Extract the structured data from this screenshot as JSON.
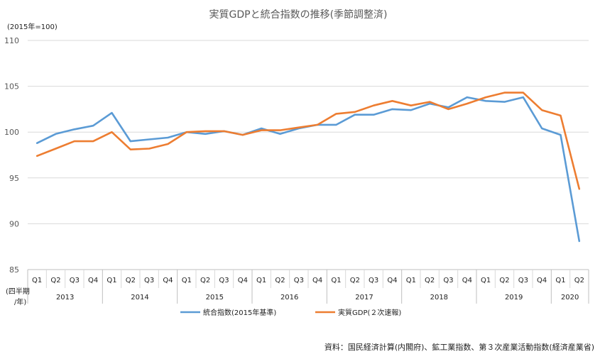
{
  "chart_data": {
    "type": "line",
    "title": "実質GDPと統合指数の推移(季節調整済)",
    "unit_label": "(2015年=100)",
    "xlabel_line1": "(四半期",
    "xlabel_line2": "/年)",
    "ylim": [
      85,
      110
    ],
    "yticks": [
      "85",
      "90",
      "95",
      "100",
      "105",
      "110"
    ],
    "grid": true,
    "legend_position": "bottom",
    "quarters": [
      "Q1",
      "Q2",
      "Q3",
      "Q4",
      "Q1",
      "Q2",
      "Q3",
      "Q4",
      "Q1",
      "Q2",
      "Q3",
      "Q4",
      "Q1",
      "Q2",
      "Q3",
      "Q4",
      "Q1",
      "Q2",
      "Q3",
      "Q4",
      "Q1",
      "Q2",
      "Q3",
      "Q4",
      "Q1",
      "Q2",
      "Q3",
      "Q4",
      "Q1",
      "Q2"
    ],
    "years": [
      "2013",
      "2014",
      "2015",
      "2016",
      "2017",
      "2018",
      "2019",
      "2020"
    ],
    "series": [
      {
        "name": "統合指数(2015年基準)",
        "color": "#5b9bd5",
        "values": [
          98.8,
          99.8,
          100.3,
          100.7,
          102.1,
          99.0,
          99.2,
          99.4,
          100.0,
          99.8,
          100.1,
          99.7,
          100.4,
          99.8,
          100.4,
          100.8,
          100.8,
          101.9,
          101.9,
          102.5,
          102.4,
          103.1,
          102.7,
          103.8,
          103.4,
          103.3,
          103.8,
          100.4,
          99.7,
          88.1
        ]
      },
      {
        "name": "実質GDP(２次速報)",
        "color": "#ed7d31",
        "values": [
          97.4,
          98.2,
          99.0,
          99.0,
          100.0,
          98.1,
          98.2,
          98.7,
          100.0,
          100.1,
          100.1,
          99.7,
          100.2,
          100.2,
          100.5,
          100.8,
          102.0,
          102.2,
          102.9,
          103.4,
          102.9,
          103.3,
          102.5,
          103.1,
          103.8,
          104.3,
          104.3,
          102.4,
          101.8,
          93.8
        ]
      }
    ]
  },
  "source_note": "資料：国民経済計算(内閣府)、鉱工業指数、第３次産業活動指数(経済産業省)"
}
